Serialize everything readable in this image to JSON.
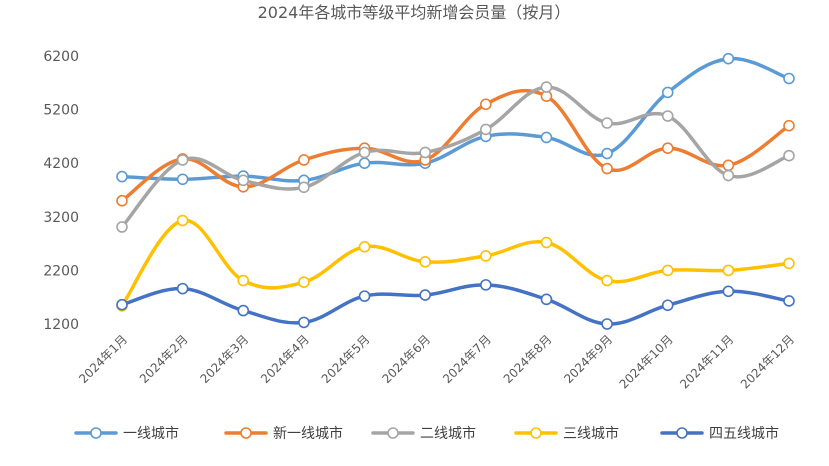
{
  "chart_data": {
    "type": "line",
    "title": "2024年各城市等级平均新增会员量（按月）",
    "xlabel": "",
    "ylabel": "",
    "categories": [
      "2024年1月",
      "2024年2月",
      "2024年3月",
      "2024年4月",
      "2024年5月",
      "2024年6月",
      "2024年7月",
      "2024年8月",
      "2024年9月",
      "2024年10月",
      "2024年11月",
      "2024年12月"
    ],
    "yticks": [
      1200,
      2200,
      3200,
      4200,
      5200,
      6200
    ],
    "ylim": [
      1200,
      6200
    ],
    "grid": false,
    "legend_position": "bottom",
    "smooth": true,
    "series": [
      {
        "name": "一线城市",
        "color": "#5B9BD5",
        "values": [
          3950,
          3900,
          3960,
          3880,
          4200,
          4200,
          4700,
          4680,
          4380,
          5520,
          6150,
          5780
        ]
      },
      {
        "name": "新一线城市",
        "color": "#ED7D31",
        "values": [
          3500,
          4280,
          3760,
          4260,
          4480,
          4260,
          5300,
          5450,
          4100,
          4480,
          4160,
          4900
        ]
      },
      {
        "name": "二线城市",
        "color": "#A5A5A5",
        "values": [
          3010,
          4260,
          3880,
          3750,
          4400,
          4400,
          4830,
          5620,
          4950,
          5080,
          3970,
          4340
        ]
      },
      {
        "name": "三线城市",
        "color": "#FFC000",
        "values": [
          1540,
          3130,
          2010,
          1980,
          2640,
          2360,
          2470,
          2720,
          2010,
          2200,
          2200,
          2330
        ]
      },
      {
        "name": "四五线城市",
        "color": "#4472C4",
        "values": [
          1560,
          1860,
          1450,
          1230,
          1720,
          1740,
          1930,
          1660,
          1200,
          1550,
          1810,
          1630
        ]
      }
    ]
  }
}
